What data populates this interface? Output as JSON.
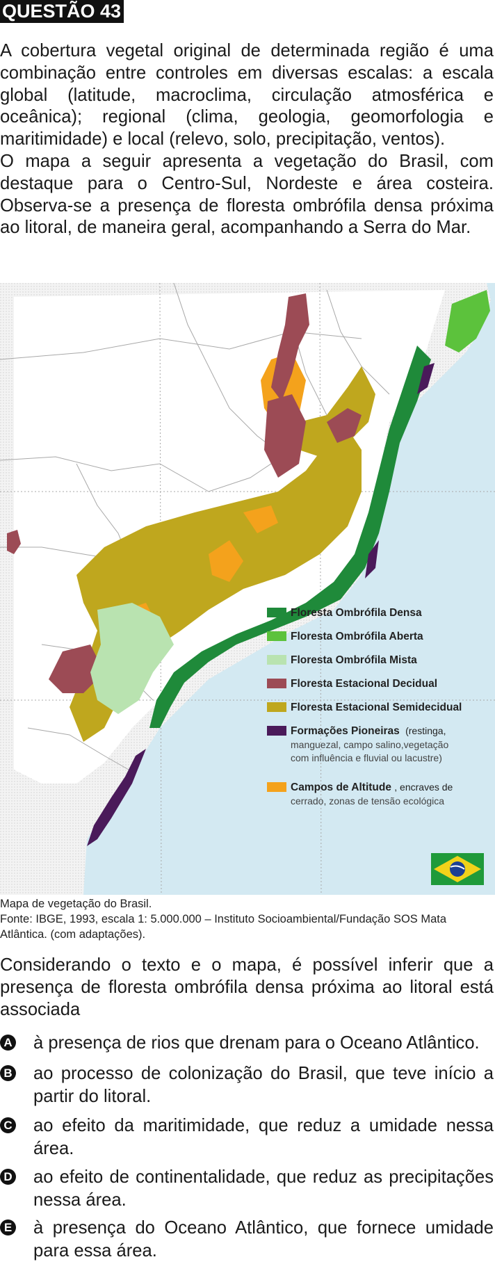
{
  "header": {
    "label": "QUESTÃO 43"
  },
  "stem": {
    "paragraphs": [
      "A cobertura vegetal original de determinada região é uma combinação entre controles em diversas escalas: a escala global (latitude, macroclima, circulação atmosférica e oceânica); regional (clima, geologia, geomorfologia e maritimidade) e local (relevo, solo, precipitação, ventos).",
      "O mapa a seguir apresenta a vegetação do Brasil, com destaque para o Centro-Sul, Nordeste e área costeira. Observa-se a presença de floresta ombrófila densa próxima ao litoral, de maneira geral, acompanhando a Serra do Mar."
    ]
  },
  "map": {
    "legend": [
      {
        "label": "Floresta Ombrófila Densa",
        "note": "",
        "color": "#1f8a3a"
      },
      {
        "label": "Floresta Ombrófila Aberta",
        "note": "",
        "color": "#5cc23c"
      },
      {
        "label": "Floresta Ombrófila Mista",
        "note": "",
        "color": "#b9e3b0"
      },
      {
        "label": "Floresta Estacional Decidual",
        "note": "",
        "color": "#9c4b55"
      },
      {
        "label": "Floresta Estacional Semidecidual",
        "note": "",
        "color": "#bfa71e"
      },
      {
        "label": "Formações Pioneiras",
        "note": "(restinga,",
        "note2": "manguezal, campo salino,vegetação",
        "note3": "com influência e fluvial ou lacustre)",
        "color": "#4a1a5a"
      },
      {
        "label": "Campos de Altitude",
        "note": ", encraves de",
        "note2": "cerrado, zonas de tensão ecológica",
        "note3": "",
        "color": "#f4a21c"
      }
    ],
    "colors": {
      "ocean": "#d3e9f2",
      "land": "#ffffff",
      "dense": "#1f8a3a",
      "open": "#5cc23c",
      "mixed": "#b9e3b0",
      "decidual": "#9c4b55",
      "semidecidual": "#bfa71e",
      "pioneer": "#4a1a5a",
      "altitude": "#f4a21c",
      "border": "#a8a8a8"
    }
  },
  "caption": {
    "line1": "Mapa de vegetação do Brasil.",
    "line2": "Fonte: IBGE, 1993, escala 1: 5.000.000 – Instituto Socioambiental/Fundação SOS Mata Atlântica. (com adaptações)."
  },
  "question": "Considerando o texto e o mapa, é possível inferir que a presença de floresta ombrófila densa próxima ao litoral está associada",
  "options": [
    {
      "letter": "A",
      "text": "à presença de rios que drenam para o Oceano Atlântico."
    },
    {
      "letter": "B",
      "text": "ao processo de colonização do Brasil, que teve início a partir do litoral."
    },
    {
      "letter": "C",
      "text": "ao efeito da maritimidade, que reduz a umidade nessa área."
    },
    {
      "letter": "D",
      "text": "ao efeito de continentalidade, que reduz as precipitações nessa área."
    },
    {
      "letter": "E",
      "text": "à presença do Oceano Atlântico, que fornece umidade para essa área."
    }
  ]
}
